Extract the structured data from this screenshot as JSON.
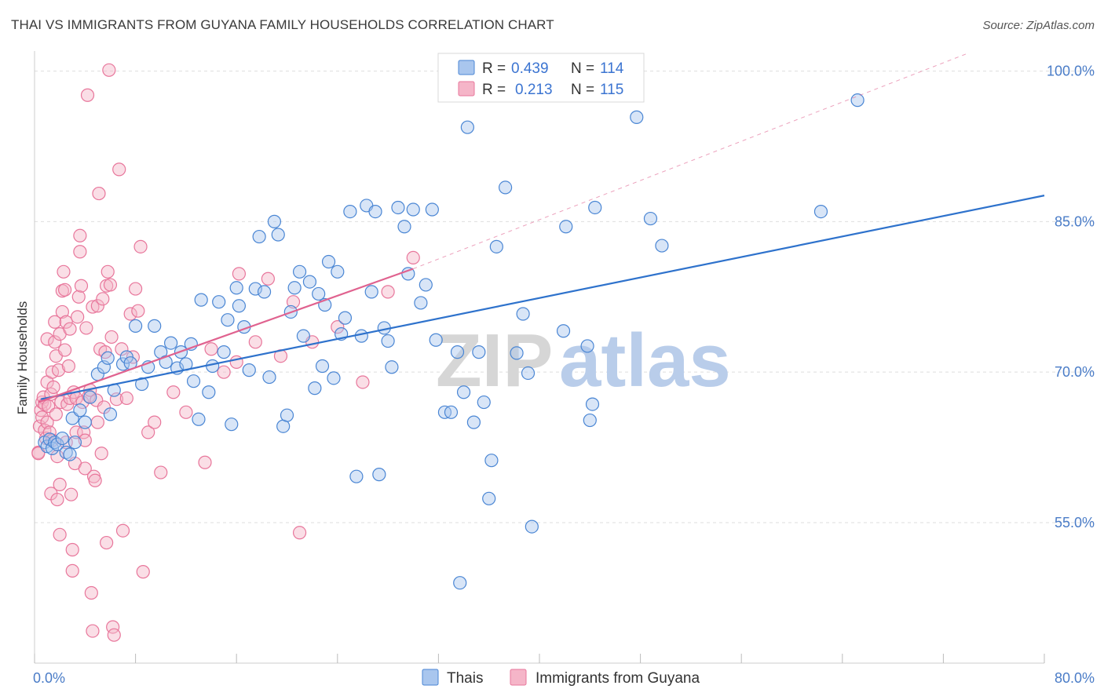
{
  "title": "THAI VS IMMIGRANTS FROM GUYANA FAMILY HOUSEHOLDS CORRELATION CHART",
  "source": "Source: ZipAtlas.com",
  "watermark": {
    "zip": "ZIP",
    "atlas": "atlas"
  },
  "colors": {
    "thai": "#4a86d4",
    "thai_fill": "#a9c6ee",
    "thai_line": "#2e72cc",
    "guyana": "#e8769b",
    "guyana_fill": "#f5b5c8",
    "guyana_line": "#e0628f",
    "tick": "#4a7cc7",
    "grid": "#dedede"
  },
  "legend": {
    "r_label": "R =",
    "n_label": "N =",
    "rows": [
      {
        "r": "0.439",
        "n": "114"
      },
      {
        "r": "0.213",
        "n": "115"
      }
    ]
  },
  "chart_data": {
    "type": "scatter",
    "xlabel": "",
    "ylabel": "Family Households",
    "xlim": [
      0,
      80
    ],
    "ylim": [
      41,
      102
    ],
    "x_tick_labels": [
      {
        "value": 0,
        "label": "0.0%"
      },
      {
        "value": 80,
        "label": "80.0%"
      }
    ],
    "y_tick_labels": [
      {
        "value": 55,
        "label": "55.0%"
      },
      {
        "value": 70,
        "label": "70.0%"
      },
      {
        "value": 85,
        "label": "85.0%"
      },
      {
        "value": 100,
        "label": "100.0%"
      }
    ],
    "grid": true,
    "legend_position": "top-center",
    "series": [
      {
        "name": "Thais",
        "r": 0.439,
        "n": 114,
        "trend": {
          "x0": 0.5,
          "y0": 67.3,
          "x1": 80,
          "y1": 87.6
        },
        "points": [
          [
            0.8,
            63.0
          ],
          [
            1.0,
            62.6
          ],
          [
            1.2,
            63.3
          ],
          [
            1.4,
            62.4
          ],
          [
            1.6,
            63.0
          ],
          [
            1.8,
            62.8
          ],
          [
            2.2,
            63.4
          ],
          [
            2.5,
            62.0
          ],
          [
            2.8,
            61.8
          ],
          [
            3.0,
            65.4
          ],
          [
            3.2,
            63.0
          ],
          [
            3.6,
            66.2
          ],
          [
            4.0,
            65.0
          ],
          [
            4.4,
            67.5
          ],
          [
            5.0,
            69.8
          ],
          [
            5.5,
            70.5
          ],
          [
            5.8,
            71.4
          ],
          [
            6.0,
            65.8
          ],
          [
            6.3,
            68.2
          ],
          [
            7.0,
            70.8
          ],
          [
            7.3,
            71.5
          ],
          [
            7.6,
            70.9
          ],
          [
            8.0,
            74.6
          ],
          [
            8.5,
            68.8
          ],
          [
            9.0,
            70.5
          ],
          [
            9.5,
            74.6
          ],
          [
            10.0,
            72.0
          ],
          [
            10.4,
            71.0
          ],
          [
            10.8,
            72.9
          ],
          [
            11.3,
            70.4
          ],
          [
            11.6,
            72.0
          ],
          [
            12.0,
            70.8
          ],
          [
            12.4,
            72.8
          ],
          [
            12.6,
            69.1
          ],
          [
            13.0,
            65.3
          ],
          [
            13.2,
            77.2
          ],
          [
            13.8,
            68.0
          ],
          [
            14.1,
            70.6
          ],
          [
            14.6,
            77.0
          ],
          [
            15.0,
            72.0
          ],
          [
            15.3,
            75.2
          ],
          [
            15.6,
            64.8
          ],
          [
            16.0,
            78.4
          ],
          [
            16.2,
            76.6
          ],
          [
            16.6,
            74.5
          ],
          [
            17.0,
            70.2
          ],
          [
            17.5,
            78.3
          ],
          [
            17.8,
            83.5
          ],
          [
            18.2,
            78.0
          ],
          [
            18.6,
            69.5
          ],
          [
            19.0,
            85.0
          ],
          [
            19.3,
            83.7
          ],
          [
            19.7,
            64.6
          ],
          [
            20.0,
            65.7
          ],
          [
            20.3,
            76.0
          ],
          [
            20.6,
            78.4
          ],
          [
            21.0,
            80.0
          ],
          [
            21.3,
            73.6
          ],
          [
            21.8,
            79.0
          ],
          [
            22.2,
            68.4
          ],
          [
            22.5,
            77.8
          ],
          [
            22.8,
            70.6
          ],
          [
            23.0,
            76.7
          ],
          [
            23.3,
            81.0
          ],
          [
            23.7,
            69.4
          ],
          [
            24.0,
            80.0
          ],
          [
            24.3,
            73.8
          ],
          [
            24.6,
            75.4
          ],
          [
            25.0,
            86.0
          ],
          [
            25.5,
            59.6
          ],
          [
            25.9,
            73.6
          ],
          [
            26.3,
            86.6
          ],
          [
            26.7,
            78.0
          ],
          [
            27.0,
            86.0
          ],
          [
            27.3,
            59.8
          ],
          [
            27.7,
            74.4
          ],
          [
            28.0,
            73.1
          ],
          [
            28.3,
            70.5
          ],
          [
            28.8,
            86.4
          ],
          [
            29.3,
            84.5
          ],
          [
            29.6,
            79.8
          ],
          [
            30.0,
            86.2
          ],
          [
            30.6,
            76.9
          ],
          [
            31.0,
            78.7
          ],
          [
            31.5,
            86.2
          ],
          [
            31.8,
            73.2
          ],
          [
            32.5,
            66.0
          ],
          [
            33.0,
            66.0
          ],
          [
            33.5,
            72.0
          ],
          [
            34.0,
            68.0
          ],
          [
            34.3,
            94.4
          ],
          [
            34.8,
            65.0
          ],
          [
            35.2,
            72.0
          ],
          [
            35.6,
            67.0
          ],
          [
            36.0,
            57.4
          ],
          [
            36.2,
            61.2
          ],
          [
            36.6,
            82.5
          ],
          [
            37.3,
            88.4
          ],
          [
            38.2,
            71.9
          ],
          [
            38.7,
            75.8
          ],
          [
            39.1,
            69.9
          ],
          [
            39.4,
            54.6
          ],
          [
            41.9,
            74.1
          ],
          [
            42.1,
            84.5
          ],
          [
            43.8,
            72.6
          ],
          [
            44.0,
            65.2
          ],
          [
            44.2,
            66.8
          ],
          [
            44.4,
            86.4
          ],
          [
            47.7,
            95.4
          ],
          [
            48.8,
            85.3
          ],
          [
            49.7,
            82.6
          ],
          [
            62.3,
            86.0
          ],
          [
            65.2,
            97.1
          ],
          [
            33.7,
            49.0
          ]
        ]
      },
      {
        "name": "Immigrants from Guyana",
        "r": 0.213,
        "n": 115,
        "trend": {
          "x0": 0.3,
          "y0": 67.0,
          "x1": 30.0,
          "y1": 80.3
        },
        "ext_trend": {
          "x0": 30.0,
          "y0": 80.3,
          "x1": 74.0,
          "y1": 101.8
        },
        "points": [
          [
            0.3,
            62.0
          ],
          [
            0.4,
            64.6
          ],
          [
            0.5,
            66.2
          ],
          [
            0.6,
            67.0
          ],
          [
            0.6,
            65.5
          ],
          [
            0.7,
            67.5
          ],
          [
            0.8,
            64.2
          ],
          [
            0.8,
            66.8
          ],
          [
            0.9,
            63.4
          ],
          [
            1.0,
            69.0
          ],
          [
            1.0,
            73.3
          ],
          [
            1.0,
            65.0
          ],
          [
            1.1,
            66.6
          ],
          [
            1.2,
            64.0
          ],
          [
            1.3,
            67.8
          ],
          [
            1.3,
            57.9
          ],
          [
            1.4,
            70.0
          ],
          [
            1.4,
            63.2
          ],
          [
            1.5,
            68.5
          ],
          [
            1.6,
            73.0
          ],
          [
            1.6,
            75.0
          ],
          [
            1.7,
            71.6
          ],
          [
            1.7,
            65.8
          ],
          [
            1.8,
            61.6
          ],
          [
            1.8,
            57.3
          ],
          [
            1.9,
            70.2
          ],
          [
            2.0,
            73.8
          ],
          [
            2.0,
            58.8
          ],
          [
            2.0,
            53.8
          ],
          [
            2.1,
            67.0
          ],
          [
            2.2,
            76.0
          ],
          [
            2.2,
            78.1
          ],
          [
            2.3,
            80.0
          ],
          [
            2.4,
            78.2
          ],
          [
            2.4,
            72.2
          ],
          [
            2.5,
            75.0
          ],
          [
            2.5,
            63.0
          ],
          [
            2.6,
            66.8
          ],
          [
            2.7,
            70.6
          ],
          [
            2.8,
            74.3
          ],
          [
            2.8,
            67.4
          ],
          [
            2.9,
            57.8
          ],
          [
            3.0,
            52.3
          ],
          [
            3.0,
            50.2
          ],
          [
            3.1,
            68.0
          ],
          [
            3.2,
            60.9
          ],
          [
            3.3,
            64.0
          ],
          [
            3.3,
            67.4
          ],
          [
            3.4,
            75.5
          ],
          [
            3.5,
            77.5
          ],
          [
            3.6,
            83.6
          ],
          [
            3.6,
            82.0
          ],
          [
            3.7,
            78.6
          ],
          [
            3.8,
            67.0
          ],
          [
            3.9,
            64.0
          ],
          [
            4.0,
            63.2
          ],
          [
            4.0,
            60.4
          ],
          [
            4.1,
            74.4
          ],
          [
            4.2,
            97.6
          ],
          [
            4.3,
            67.6
          ],
          [
            4.4,
            68.2
          ],
          [
            4.5,
            48.0
          ],
          [
            4.6,
            44.2
          ],
          [
            4.6,
            76.5
          ],
          [
            4.7,
            59.6
          ],
          [
            4.8,
            59.2
          ],
          [
            4.9,
            67.2
          ],
          [
            5.0,
            76.6
          ],
          [
            5.0,
            65.0
          ],
          [
            5.1,
            87.8
          ],
          [
            5.2,
            72.3
          ],
          [
            5.3,
            61.9
          ],
          [
            5.4,
            77.3
          ],
          [
            5.5,
            66.5
          ],
          [
            5.6,
            72.0
          ],
          [
            5.7,
            53.0
          ],
          [
            5.7,
            78.6
          ],
          [
            5.8,
            80.0
          ],
          [
            5.9,
            100.1
          ],
          [
            6.0,
            78.7
          ],
          [
            6.1,
            73.5
          ],
          [
            6.2,
            44.6
          ],
          [
            6.3,
            43.8
          ],
          [
            6.5,
            67.3
          ],
          [
            6.7,
            90.2
          ],
          [
            6.9,
            72.3
          ],
          [
            7.0,
            54.2
          ],
          [
            7.3,
            67.4
          ],
          [
            7.6,
            75.8
          ],
          [
            7.8,
            71.5
          ],
          [
            8.0,
            78.3
          ],
          [
            8.2,
            76.1
          ],
          [
            8.4,
            82.5
          ],
          [
            8.6,
            50.1
          ],
          [
            9.0,
            64.0
          ],
          [
            9.5,
            65.0
          ],
          [
            10.0,
            60.0
          ],
          [
            11.0,
            68.0
          ],
          [
            12.0,
            66.0
          ],
          [
            13.5,
            61.0
          ],
          [
            14.0,
            72.3
          ],
          [
            15.0,
            70.0
          ],
          [
            16.0,
            71.0
          ],
          [
            16.2,
            79.8
          ],
          [
            17.5,
            73.0
          ],
          [
            18.5,
            79.3
          ],
          [
            19.5,
            71.6
          ],
          [
            20.5,
            77.0
          ],
          [
            21.0,
            54.0
          ],
          [
            22.0,
            73.0
          ],
          [
            24.0,
            74.5
          ],
          [
            26.0,
            69.0
          ],
          [
            28.0,
            78.0
          ],
          [
            30.0,
            81.4
          ],
          [
            0.3,
            61.9
          ]
        ]
      }
    ]
  }
}
